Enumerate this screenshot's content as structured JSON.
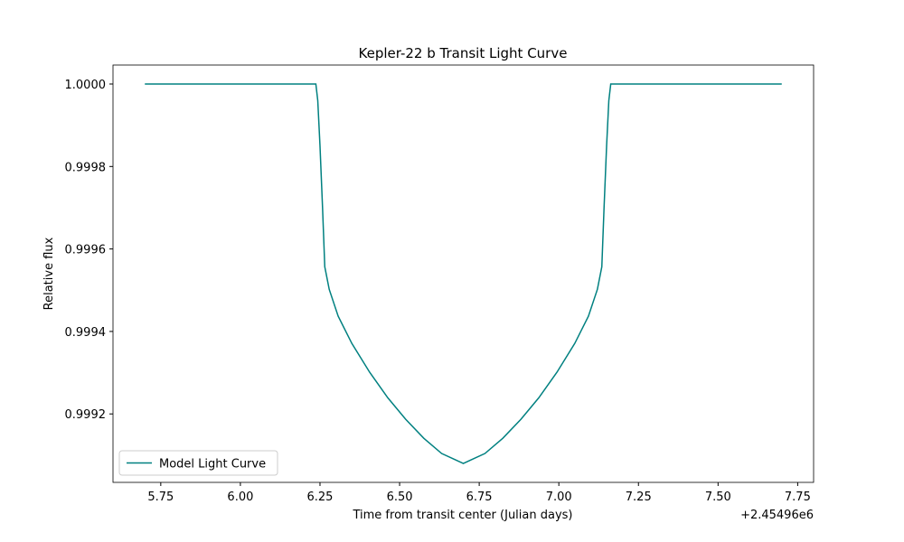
{
  "chart_data": {
    "type": "line",
    "title": "Kepler-22 b Transit Light Curve",
    "xlabel": "Time from transit center (Julian days)",
    "ylabel": "Relative flux",
    "x_offset_label": "+2.45496e6",
    "x": [
      5.7,
      6.237,
      6.243,
      6.25,
      6.258,
      6.265,
      6.279,
      6.307,
      6.35,
      6.406,
      6.463,
      6.519,
      6.576,
      6.632,
      6.7,
      6.768,
      6.824,
      6.881,
      6.937,
      6.994,
      7.05,
      7.093,
      7.121,
      7.135,
      7.142,
      7.15,
      7.157,
      7.163,
      7.7
    ],
    "series": [
      {
        "name": "Model Light Curve",
        "color": "#008080",
        "values": [
          1.0,
          1.0,
          0.99996,
          0.99985,
          0.9997,
          0.999557,
          0.999502,
          0.999437,
          0.999371,
          0.999301,
          0.999239,
          0.999187,
          0.999141,
          0.999104,
          0.99908,
          0.999104,
          0.999141,
          0.999187,
          0.999239,
          0.999301,
          0.999371,
          0.999437,
          0.999502,
          0.999557,
          0.9997,
          0.99985,
          0.99996,
          1.0,
          1.0
        ]
      }
    ],
    "xlim": [
      5.6,
      7.8
    ],
    "ylim": [
      0.999034,
      1.000046
    ],
    "xticks": [
      5.75,
      {
        "value": 6,
        "label": "6.00"
      },
      6.25,
      {
        "value": 6.5,
        "label": "6.50"
      },
      6.75,
      {
        "value": 7,
        "label": "7.00"
      },
      7.25,
      {
        "value": 7.5,
        "label": "7.50"
      },
      7.75
    ],
    "yticks": [
      0.9992,
      0.9994,
      0.9996,
      0.9998,
      {
        "value": 1,
        "label": "1.0000"
      }
    ],
    "grid": false,
    "legend": "lower left"
  }
}
